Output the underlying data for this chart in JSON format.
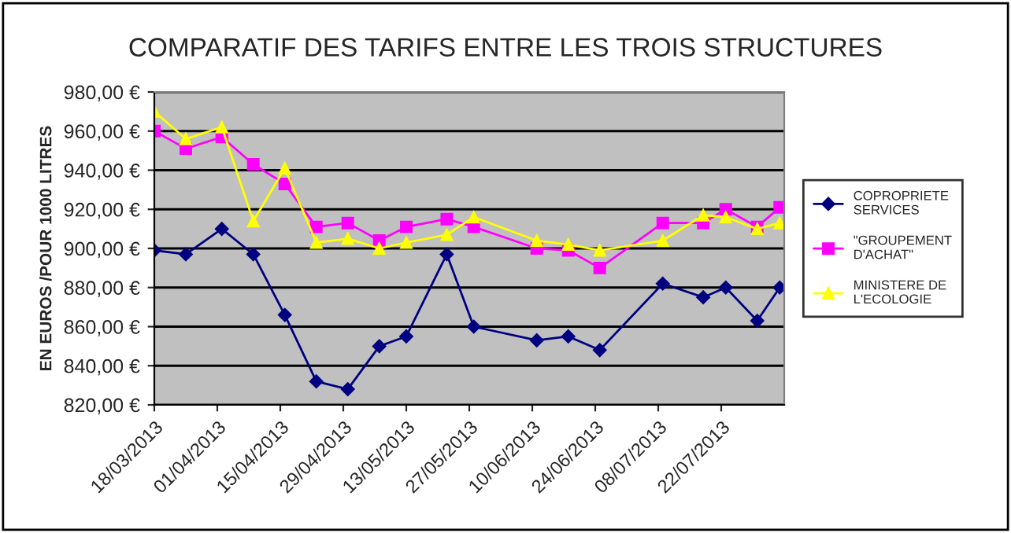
{
  "chart_data": {
    "type": "line",
    "title": "COMPARATIF DES TARIFS ENTRE LES TROIS STRUCTURES",
    "ylabel": "EN EUROS /POUR 1000 LITRES",
    "x": [
      "2013-03-18",
      "2013-03-25",
      "2013-04-02",
      "2013-04-09",
      "2013-04-16",
      "2013-04-23",
      "2013-04-30",
      "2013-05-07",
      "2013-05-13",
      "2013-05-22",
      "2013-05-28",
      "2013-06-11",
      "2013-06-18",
      "2013-06-25",
      "2013-07-09",
      "2013-07-18",
      "2013-07-23",
      "2013-07-30",
      "2013-08-04"
    ],
    "series": [
      {
        "name": "COPROPRIETE SERVICES",
        "color": "#000080",
        "marker": "diamond",
        "values": [
          899,
          897,
          910,
          897,
          866,
          832,
          828,
          850,
          855,
          897,
          860,
          853,
          855,
          848,
          882,
          875,
          880,
          863,
          880
        ]
      },
      {
        "name": "\"GROUPEMENT D'ACHAT\"",
        "color": "#ff00ff",
        "marker": "square",
        "values": [
          960,
          951,
          957,
          943,
          933,
          911,
          913,
          904,
          911,
          915,
          911,
          900,
          899,
          890,
          913,
          913,
          920,
          911,
          921
        ]
      },
      {
        "name": "MINISTERE DE L'ECOLOGIE",
        "color": "#ffff00",
        "marker": "triangle",
        "values": [
          970,
          956,
          962,
          914,
          941,
          903,
          905,
          900,
          903,
          907,
          916,
          904,
          902,
          899,
          904,
          917,
          916,
          910,
          913
        ]
      }
    ],
    "xlim": [
      "2013-03-18",
      "2013-08-05"
    ],
    "xticks": [
      {
        "value": "2013-03-18",
        "label": "18/03/2013"
      },
      {
        "value": "2013-04-01",
        "label": "01/04/2013"
      },
      {
        "value": "2013-04-15",
        "label": "15/04/2013"
      },
      {
        "value": "2013-04-29",
        "label": "29/04/2013"
      },
      {
        "value": "2013-05-13",
        "label": "13/05/2013"
      },
      {
        "value": "2013-05-27",
        "label": "27/05/2013"
      },
      {
        "value": "2013-06-10",
        "label": "10/06/2013"
      },
      {
        "value": "2013-06-24",
        "label": "24/06/2013"
      },
      {
        "value": "2013-07-08",
        "label": "08/07/2013"
      },
      {
        "value": "2013-07-22",
        "label": "22/07/2013"
      }
    ],
    "ylim": [
      820,
      980
    ],
    "yticks": [
      {
        "value": 820,
        "label": "820,00 €"
      },
      {
        "value": 840,
        "label": "840,00 €"
      },
      {
        "value": 860,
        "label": "860,00 €"
      },
      {
        "value": 880,
        "label": "880,00 €"
      },
      {
        "value": 900,
        "label": "900,00 €"
      },
      {
        "value": 920,
        "label": "920,00 €"
      },
      {
        "value": 940,
        "label": "940,00 €"
      },
      {
        "value": 960,
        "label": "960,00 €"
      },
      {
        "value": 980,
        "label": "980,00 €"
      }
    ],
    "grid": "y",
    "legend": "right"
  }
}
